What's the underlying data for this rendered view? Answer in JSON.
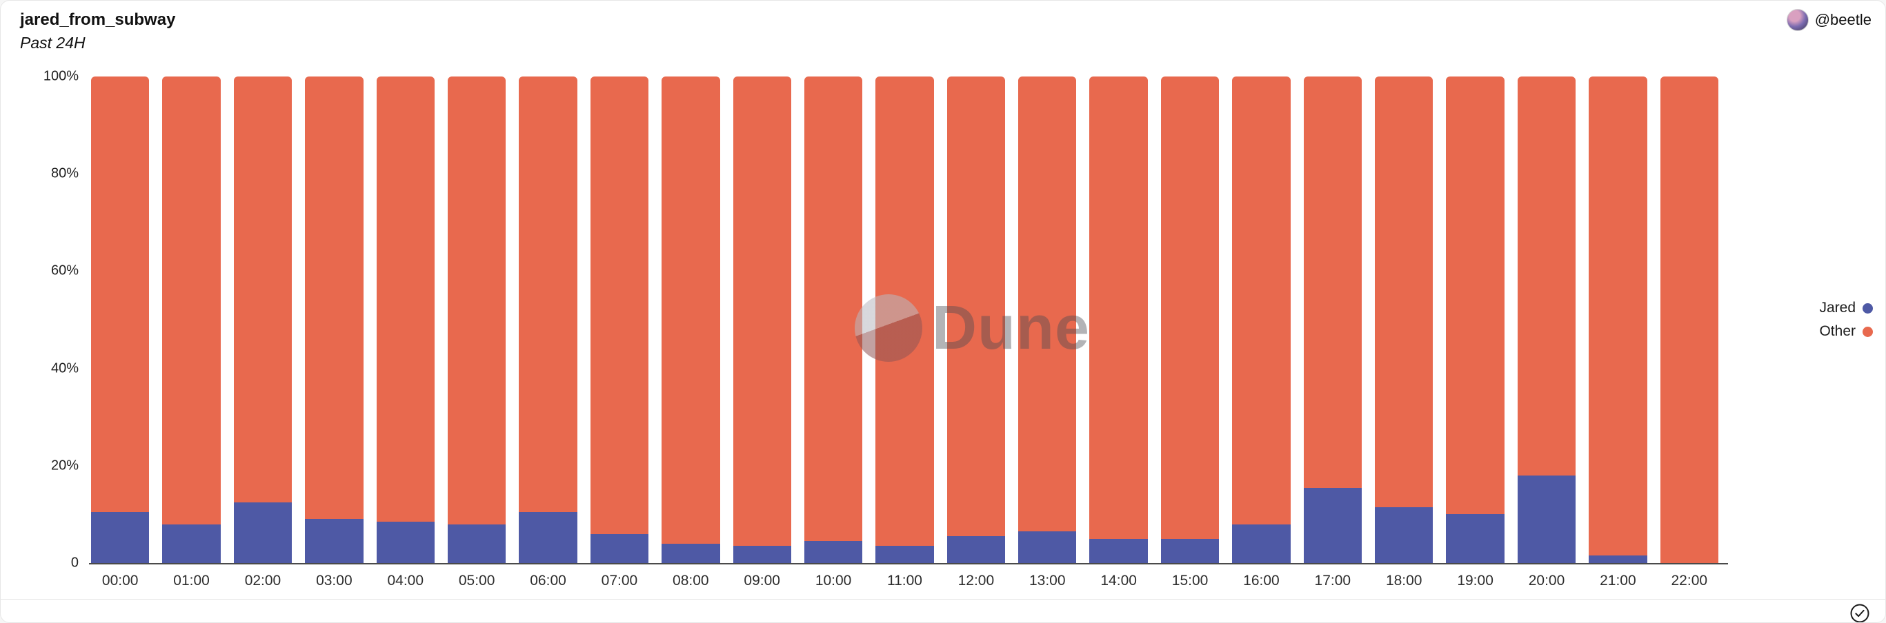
{
  "header": {
    "title": "jared_from_subway",
    "subtitle": "Past 24H",
    "user_handle": "@beetle"
  },
  "chart_data": {
    "type": "bar",
    "stacked": true,
    "normalized_percent": true,
    "title": "jared_from_subway",
    "subtitle": "Past 24H",
    "xlabel": "",
    "ylabel": "",
    "ylim": [
      0,
      100
    ],
    "grid": false,
    "legend_position": "right",
    "yticks": [
      "100%",
      "80%",
      "60%",
      "40%",
      "20%",
      "0"
    ],
    "categories": [
      "00:00",
      "01:00",
      "02:00",
      "03:00",
      "04:00",
      "05:00",
      "06:00",
      "07:00",
      "08:00",
      "09:00",
      "10:00",
      "11:00",
      "12:00",
      "13:00",
      "14:00",
      "15:00",
      "16:00",
      "17:00",
      "18:00",
      "19:00",
      "20:00",
      "21:00",
      "22:00"
    ],
    "series": [
      {
        "name": "Jared",
        "color": "#4e59a5",
        "values": [
          10.5,
          8,
          12.5,
          9,
          8.5,
          8,
          10.5,
          6,
          4,
          3.5,
          4.5,
          3.5,
          5.5,
          6.5,
          5,
          5,
          8,
          15.5,
          11.5,
          10,
          18,
          1.5,
          0
        ]
      },
      {
        "name": "Other",
        "color": "#e8694e",
        "values": [
          89.5,
          92,
          87.5,
          91,
          91.5,
          92,
          89.5,
          94,
          96,
          96.5,
          95.5,
          96.5,
          94.5,
          93.5,
          95,
          95,
          92,
          84.5,
          88.5,
          90,
          82,
          98.5,
          100
        ]
      }
    ]
  },
  "legend": {
    "items": [
      {
        "label": "Jared",
        "color": "#4e59a5"
      },
      {
        "label": "Other",
        "color": "#e8694e"
      }
    ]
  },
  "watermark": {
    "text": "Dune"
  },
  "footer": {
    "check_icon": "check-circle"
  }
}
